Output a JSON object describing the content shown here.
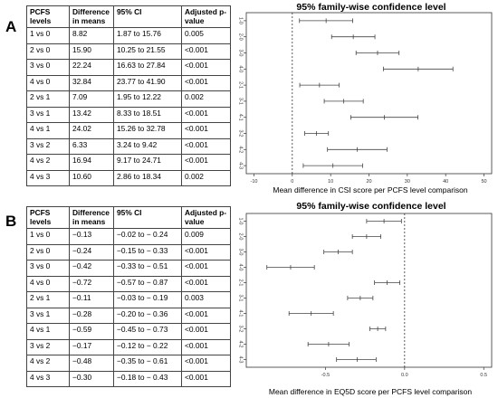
{
  "panels": [
    {
      "letter": "A",
      "table": {
        "headers": [
          "PCFS levels",
          "Difference in means",
          "95% CI",
          "Adjusted p-value"
        ],
        "rows": [
          [
            "1 vs 0",
            "8.82",
            "1.87 to 15.76",
            "0.005"
          ],
          [
            "2 vs 0",
            "15.90",
            "10.25 to 21.55",
            "<0.001"
          ],
          [
            "3 vs 0",
            "22.24",
            "16.63 to 27.84",
            "<0.001"
          ],
          [
            "4 vs 0",
            "32.84",
            "23.77 to 41.90",
            "<0.001"
          ],
          [
            "2 vs 1",
            "7.09",
            "1.95 to 12.22",
            "0.002"
          ],
          [
            "3 vs 1",
            "13.42",
            "8.33 to 18.51",
            "<0.001"
          ],
          [
            "4 vs 1",
            "24.02",
            "15.26 to 32.78",
            "<0.001"
          ],
          [
            "3 vs 2",
            "6.33",
            "3.24 to 9.42",
            "<0.001"
          ],
          [
            "4 vs 2",
            "16.94",
            "9.17 to 24.71",
            "<0.001"
          ],
          [
            "4 vs 3",
            "10.60",
            "2.86 to 18.34",
            "0.002"
          ]
        ]
      }
    },
    {
      "letter": "B",
      "table": {
        "headers": [
          "PCFS levels",
          "Difference in means",
          "95% CI",
          "Adjusted p-value"
        ],
        "rows": [
          [
            "1 vs 0",
            "−0.13",
            "−0.02 to − 0.24",
            "0.009"
          ],
          [
            "2 vs 0",
            "−0.24",
            "−0.15 to − 0.33",
            "<0.001"
          ],
          [
            "3 vs 0",
            "−0.42",
            "−0.33 to − 0.51",
            "<0.001"
          ],
          [
            "4 vs 0",
            "−0.72",
            "−0.57 to − 0.87",
            "<0.001"
          ],
          [
            "2 vs 1",
            "−0.11",
            "−0.03 to − 0.19",
            "0.003"
          ],
          [
            "3 vs 1",
            "−0.28",
            "−0.20 to − 0.36",
            "<0.001"
          ],
          [
            "4 vs 1",
            "−0.59",
            "−0.45 to − 0.73",
            "<0.001"
          ],
          [
            "3 vs 2",
            "−0.17",
            "−0.12 to − 0.22",
            "<0.001"
          ],
          [
            "4 vs 2",
            "−0.48",
            "−0.35 to − 0.61",
            "<0.001"
          ],
          [
            "4 vs 3",
            "−0.30",
            "−0.18 to − 0.43",
            "<0.001"
          ]
        ]
      }
    }
  ],
  "chart_data": [
    {
      "type": "scatter",
      "title": "95% family-wise confidence level",
      "xlabel": "Mean difference in CSI score per PCFS level comparison",
      "ylabel": "",
      "xlim": [
        -12,
        52
      ],
      "xticks": [
        -10,
        0,
        10,
        20,
        30,
        40,
        50
      ],
      "xtick_labels": [
        "-10",
        "0",
        "10",
        "20",
        "30",
        "40",
        "50"
      ],
      "zero_line": 0,
      "categories": [
        "1-0",
        "2-0",
        "3-0",
        "4-0",
        "2-1",
        "3-1",
        "4-1",
        "3-2",
        "4-2",
        "4-3"
      ],
      "series": [
        {
          "estimate": [
            8.82,
            15.9,
            22.24,
            32.84,
            7.09,
            13.42,
            24.02,
            6.33,
            16.94,
            10.6
          ],
          "lower": [
            1.87,
            10.25,
            16.63,
            23.77,
            1.95,
            8.33,
            15.26,
            3.24,
            9.17,
            2.86
          ],
          "upper": [
            15.76,
            21.55,
            27.84,
            41.9,
            12.22,
            18.51,
            32.78,
            9.42,
            24.71,
            18.34
          ]
        }
      ],
      "grid": false
    },
    {
      "type": "scatter",
      "title": "95% family-wise confidence level",
      "xlabel": "Mean difference in EQ5D score per PCFS level comparison",
      "ylabel": "",
      "xlim": [
        -1.0,
        0.55
      ],
      "xticks": [
        -0.5,
        0.0,
        0.5
      ],
      "xtick_labels": [
        "-0.5",
        "0.0",
        "0.5"
      ],
      "zero_line": 0,
      "categories": [
        "1-0",
        "2-0",
        "3-0",
        "4-0",
        "2-1",
        "3-1",
        "4-1",
        "3-2",
        "4-2",
        "4-3"
      ],
      "series": [
        {
          "estimate": [
            -0.13,
            -0.24,
            -0.42,
            -0.72,
            -0.11,
            -0.28,
            -0.59,
            -0.17,
            -0.48,
            -0.3
          ],
          "lower": [
            -0.24,
            -0.33,
            -0.51,
            -0.87,
            -0.19,
            -0.36,
            -0.73,
            -0.22,
            -0.61,
            -0.43
          ],
          "upper": [
            -0.02,
            -0.15,
            -0.33,
            -0.57,
            -0.03,
            -0.2,
            -0.45,
            -0.12,
            -0.35,
            -0.18
          ]
        }
      ],
      "grid": false
    }
  ]
}
